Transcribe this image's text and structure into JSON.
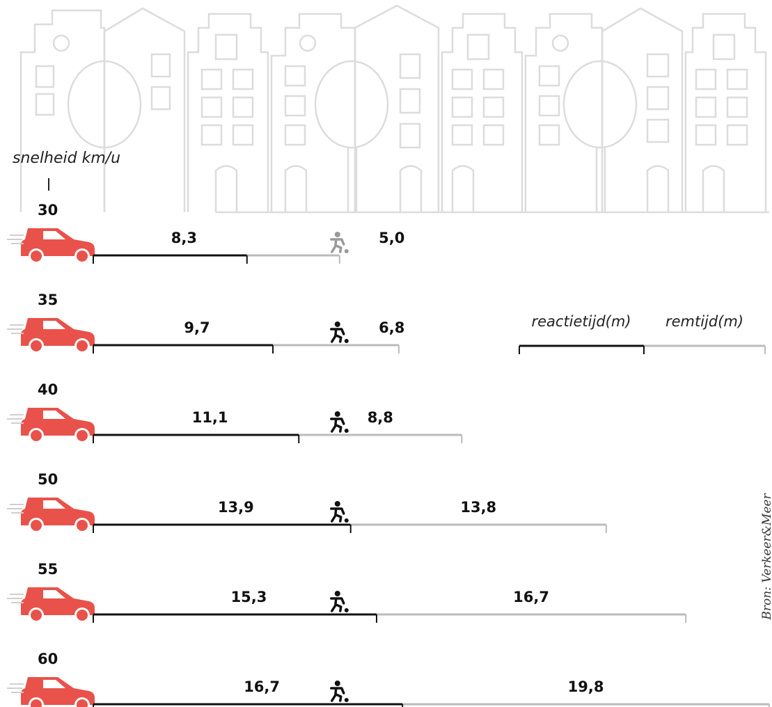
{
  "chart_data": {
    "type": "bar",
    "subtype": "stacked-horizontal",
    "ylabel": "snelheid km/u",
    "categories": [
      "30",
      "35",
      "40",
      "50",
      "55",
      "60"
    ],
    "series": [
      {
        "name": "reactietijd(m)",
        "color": "#111111",
        "values": [
          8.3,
          9.7,
          11.1,
          13.9,
          15.3,
          16.7
        ],
        "labels": [
          "8,3",
          "9,7",
          "11,1",
          "13,9",
          "15,3",
          "16,7"
        ]
      },
      {
        "name": "remtijd(m)",
        "color": "#bbbbbb",
        "values": [
          5.0,
          6.8,
          8.8,
          13.8,
          16.7,
          19.8
        ],
        "labels": [
          "5,0",
          "6,8",
          "8,8",
          "13,8",
          "16,7",
          "19,8"
        ]
      }
    ],
    "pedestrian_distance_m": 13.3,
    "legend_position": "right",
    "source": "Bron: Verkeer&Meer"
  },
  "colors": {
    "car": "#e8524a",
    "scenery": "#d9d9d9"
  },
  "icons": {
    "vehicle": "car-icon",
    "pedestrian": "pedestrian-icon"
  }
}
